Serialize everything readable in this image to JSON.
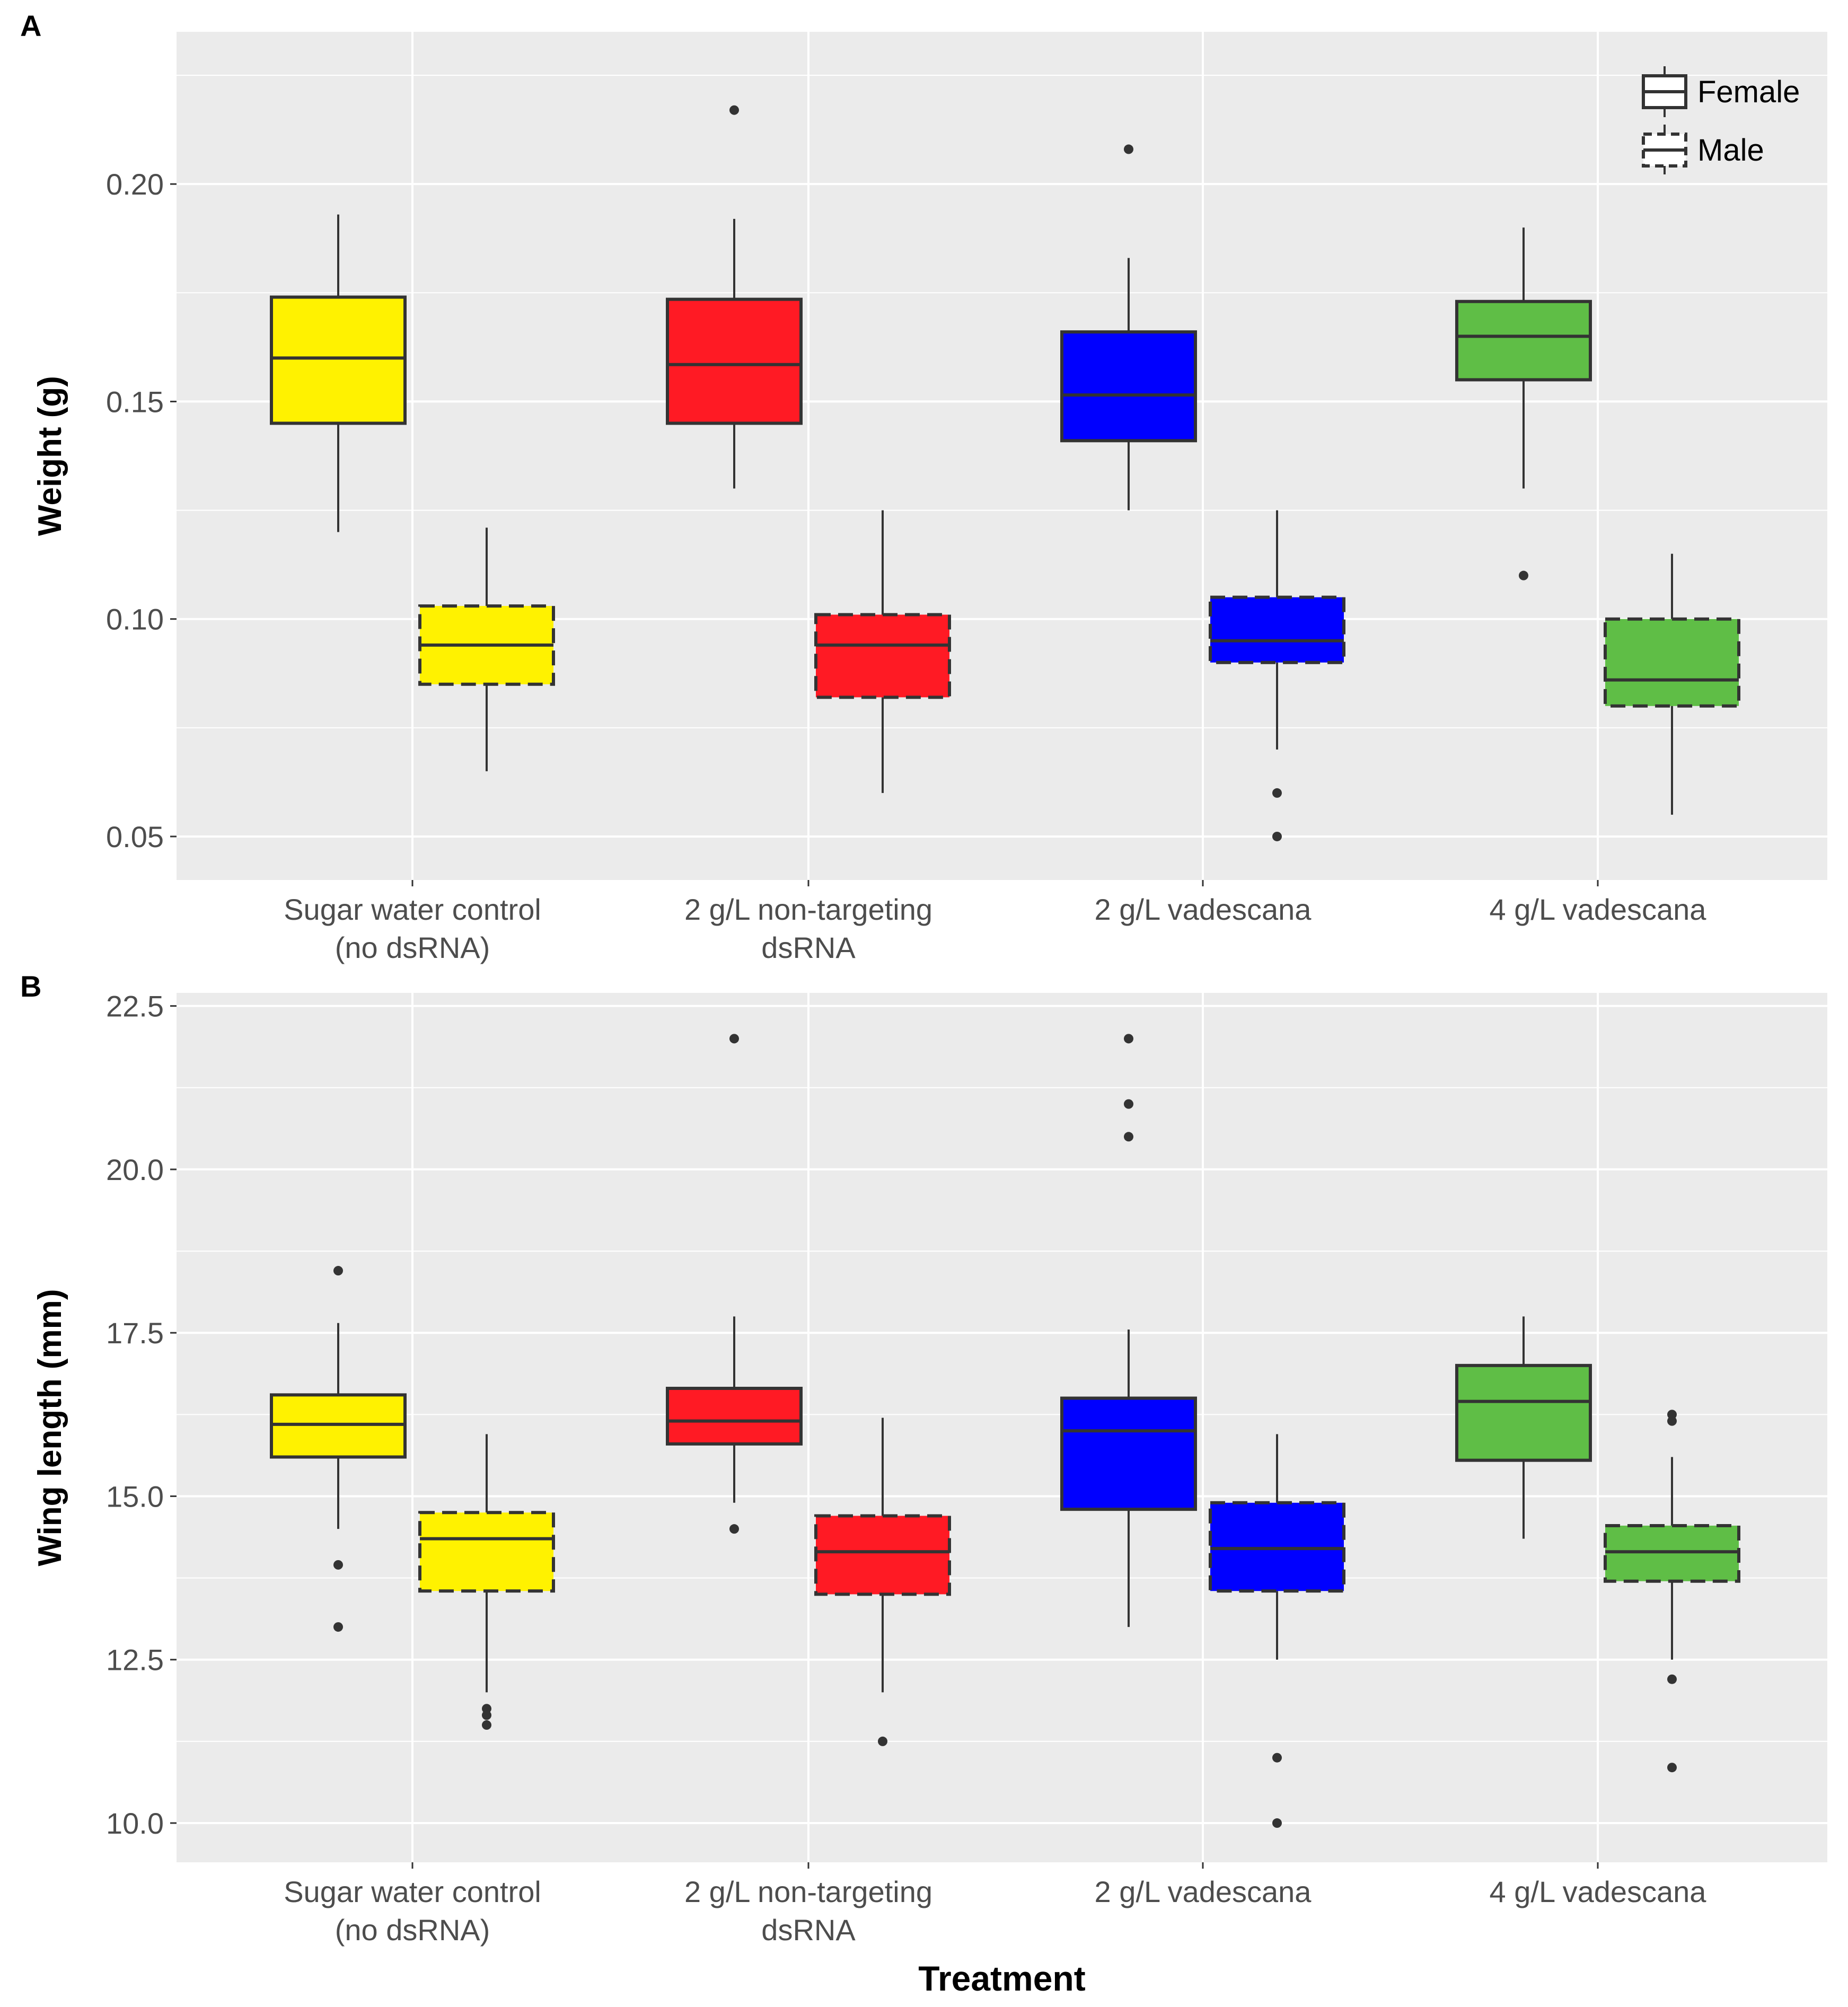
{
  "figure": {
    "xlabel": "Treatment",
    "colors": {
      "panel_bg": "#EBEBEB",
      "grid": "#FFFFFF",
      "box_outline": "#333333",
      "text": "#4D4D4D",
      "title_text": "#000000",
      "sugar": "#FFF200",
      "nontarget": "#FF1A24",
      "vad2": "#0000FF",
      "vad4": "#5FBE46"
    }
  },
  "chart_data": [
    {
      "panel_label": "A",
      "type": "box",
      "ylabel": "Weight (g)",
      "ylim": [
        0.04,
        0.235
      ],
      "yticks": [
        0.05,
        0.1,
        0.15,
        0.2
      ],
      "ytick_labels": [
        "0.05",
        "0.10",
        "0.15",
        "0.20"
      ],
      "grid": true,
      "categories": [
        "Sugar water control\n(no dsRNA)",
        "2 g/L non-targeting\ndsRNA",
        "2 g/L vadescana",
        "4 g/L vadescana"
      ],
      "category_colors": [
        "sugar",
        "nontarget",
        "vad2",
        "vad4"
      ],
      "legend": {
        "position": "top-right",
        "entries": [
          {
            "label": "Female",
            "style": "solid"
          },
          {
            "label": "Male",
            "style": "dashed"
          }
        ]
      },
      "series": [
        {
          "name": "Female",
          "style": "solid",
          "boxes": [
            {
              "category": 0,
              "whisker_low": 0.12,
              "q1": 0.145,
              "median": 0.16,
              "q3": 0.174,
              "whisker_high": 0.193,
              "outliers": []
            },
            {
              "category": 1,
              "whisker_low": 0.13,
              "q1": 0.145,
              "median": 0.1585,
              "q3": 0.1735,
              "whisker_high": 0.192,
              "outliers": [
                0.217
              ]
            },
            {
              "category": 2,
              "whisker_low": 0.125,
              "q1": 0.141,
              "median": 0.1515,
              "q3": 0.166,
              "whisker_high": 0.183,
              "outliers": [
                0.208
              ]
            },
            {
              "category": 3,
              "whisker_low": 0.13,
              "q1": 0.155,
              "median": 0.165,
              "q3": 0.173,
              "whisker_high": 0.19,
              "outliers": [
                0.11
              ]
            }
          ]
        },
        {
          "name": "Male",
          "style": "dashed",
          "boxes": [
            {
              "category": 0,
              "whisker_low": 0.065,
              "q1": 0.085,
              "median": 0.094,
              "q3": 0.103,
              "whisker_high": 0.121,
              "outliers": []
            },
            {
              "category": 1,
              "whisker_low": 0.06,
              "q1": 0.082,
              "median": 0.094,
              "q3": 0.101,
              "whisker_high": 0.125,
              "outliers": []
            },
            {
              "category": 2,
              "whisker_low": 0.07,
              "q1": 0.09,
              "median": 0.095,
              "q3": 0.105,
              "whisker_high": 0.125,
              "outliers": [
                0.06,
                0.05
              ]
            },
            {
              "category": 3,
              "whisker_low": 0.055,
              "q1": 0.08,
              "median": 0.086,
              "q3": 0.1,
              "whisker_high": 0.115,
              "outliers": []
            }
          ]
        }
      ]
    },
    {
      "panel_label": "B",
      "type": "box",
      "ylabel": "Wing length (mm)",
      "ylim": [
        9.4,
        22.7
      ],
      "yticks": [
        10.0,
        12.5,
        15.0,
        17.5,
        20.0,
        22.5
      ],
      "ytick_labels": [
        "10.0",
        "12.5",
        "15.0",
        "17.5",
        "20.0",
        "22.5"
      ],
      "grid": true,
      "categories": [
        "Sugar water control\n(no dsRNA)",
        "2 g/L non-targeting\ndsRNA",
        "2 g/L vadescana",
        "4 g/L vadescana"
      ],
      "category_colors": [
        "sugar",
        "nontarget",
        "vad2",
        "vad4"
      ],
      "series": [
        {
          "name": "Female",
          "style": "solid",
          "boxes": [
            {
              "category": 0,
              "whisker_low": 14.5,
              "q1": 15.6,
              "median": 16.1,
              "q3": 16.55,
              "whisker_high": 17.65,
              "outliers": [
                18.45,
                13.95,
                13.0
              ]
            },
            {
              "category": 1,
              "whisker_low": 14.9,
              "q1": 15.8,
              "median": 16.15,
              "q3": 16.65,
              "whisker_high": 17.75,
              "outliers": [
                22.0,
                14.5
              ]
            },
            {
              "category": 2,
              "whisker_low": 13.0,
              "q1": 14.8,
              "median": 16.0,
              "q3": 16.5,
              "whisker_high": 17.55,
              "outliers": [
                22.0,
                21.0,
                20.5
              ]
            },
            {
              "category": 3,
              "whisker_low": 14.35,
              "q1": 15.55,
              "median": 16.45,
              "q3": 17.0,
              "whisker_high": 17.75,
              "outliers": []
            }
          ]
        },
        {
          "name": "Male",
          "style": "dashed",
          "boxes": [
            {
              "category": 0,
              "whisker_low": 12.0,
              "q1": 13.55,
              "median": 14.35,
              "q3": 14.75,
              "whisker_high": 15.95,
              "outliers": [
                11.75,
                11.65,
                11.5
              ]
            },
            {
              "category": 1,
              "whisker_low": 12.0,
              "q1": 13.5,
              "median": 14.15,
              "q3": 14.7,
              "whisker_high": 16.2,
              "outliers": [
                11.25
              ]
            },
            {
              "category": 2,
              "whisker_low": 12.5,
              "q1": 13.55,
              "median": 14.2,
              "q3": 14.9,
              "whisker_high": 15.95,
              "outliers": [
                11.0,
                10.0
              ]
            },
            {
              "category": 3,
              "whisker_low": 12.5,
              "q1": 13.7,
              "median": 14.15,
              "q3": 14.55,
              "whisker_high": 15.6,
              "outliers": [
                16.25,
                16.15,
                12.2,
                10.85
              ]
            }
          ]
        }
      ]
    }
  ]
}
